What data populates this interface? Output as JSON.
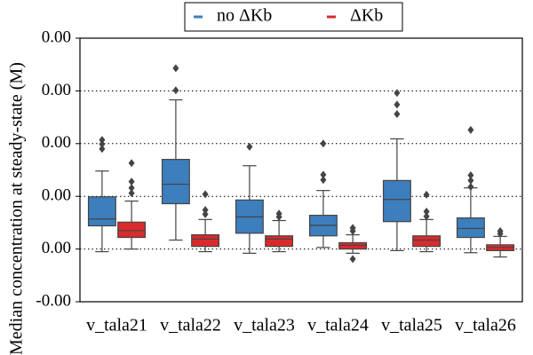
{
  "chart_data": {
    "type": "box",
    "y_label": "Median concentration at steady-state (M)",
    "categories": [
      "v_tala21",
      "v_tala22",
      "v_tala23",
      "v_tala24",
      "v_tala25",
      "v_tala26"
    ],
    "ylim": [
      -0.001,
      0.004
    ],
    "yticks": [
      {
        "value": -0.001,
        "label": "-0.00"
      },
      {
        "value": 0,
        "label": "0.00"
      },
      {
        "value": 0.001,
        "label": "0.00"
      },
      {
        "value": 0.002,
        "label": "0.00"
      },
      {
        "value": 0.003,
        "label": "0.00"
      },
      {
        "value": 0.004,
        "label": "0.00"
      }
    ],
    "grid": true,
    "legend": "top",
    "series": [
      {
        "name": "no ΔKb",
        "color": "#3d7ebd",
        "boxes": [
          {
            "whislo": -5e-05,
            "q1": 0.00044,
            "med": 0.00057,
            "q3": 0.00099,
            "whishi": 0.00148,
            "fliers": [
              0.00207,
              0.00199,
              0.0019
            ]
          },
          {
            "whislo": 0.00017,
            "q1": 0.00086,
            "med": 0.00123,
            "q3": 0.0017,
            "whishi": 0.00283,
            "fliers": [
              0.00343,
              0.00301
            ]
          },
          {
            "whislo": -8e-05,
            "q1": 0.0003,
            "med": 0.00061,
            "q3": 0.00093,
            "whishi": 0.00158,
            "fliers": [
              0.00194
            ]
          },
          {
            "whislo": 3e-05,
            "q1": 0.00025,
            "med": 0.00045,
            "q3": 0.00064,
            "whishi": 0.00111,
            "fliers": [
              0.002,
              0.00141,
              0.00131
            ]
          },
          {
            "whislo": -3e-05,
            "q1": 0.00052,
            "med": 0.00094,
            "q3": 0.0013,
            "whishi": 0.00209,
            "fliers": [
              0.00296,
              0.00274,
              0.00256
            ]
          },
          {
            "whislo": -7e-05,
            "q1": 0.00022,
            "med": 0.00039,
            "q3": 0.00059,
            "whishi": 0.00116,
            "fliers": [
              0.00226,
              0.0014,
              0.0013,
              0.00118
            ]
          }
        ]
      },
      {
        "name": "ΔKb",
        "color": "#d92a2c",
        "boxes": [
          {
            "whislo": 0,
            "q1": 0.00022,
            "med": 0.00035,
            "q3": 0.00051,
            "whishi": 0.00091,
            "fliers": [
              0.00163,
              0.00128,
              0.00116,
              0.00106
            ]
          },
          {
            "whislo": -5e-05,
            "q1": 5e-05,
            "med": 0.00019,
            "q3": 0.00027,
            "whishi": 0.00056,
            "fliers": [
              0.00104,
              0.00074,
              0.00066
            ]
          },
          {
            "whislo": -5e-05,
            "q1": 5e-05,
            "med": 0.00019,
            "q3": 0.00025,
            "whishi": 0.00054,
            "fliers": [
              0.00067,
              0.00061
            ]
          },
          {
            "whislo": -8e-05,
            "q1": 0,
            "med": 7e-05,
            "q3": 0.00012,
            "whishi": 0.00027,
            "fliers": [
              0.0004,
              0.00034,
              -0.00019
            ]
          },
          {
            "whislo": -5e-05,
            "q1": 5e-05,
            "med": 0.00017,
            "q3": 0.00025,
            "whishi": 0.00056,
            "fliers": [
              0.00103,
              0.00071,
              0.00062
            ]
          },
          {
            "whislo": -0.00015,
            "q1": -3e-05,
            "med": 3e-05,
            "q3": 8e-05,
            "whishi": 0.00024,
            "fliers": [
              0.00034,
              0.00029
            ]
          }
        ]
      }
    ]
  }
}
